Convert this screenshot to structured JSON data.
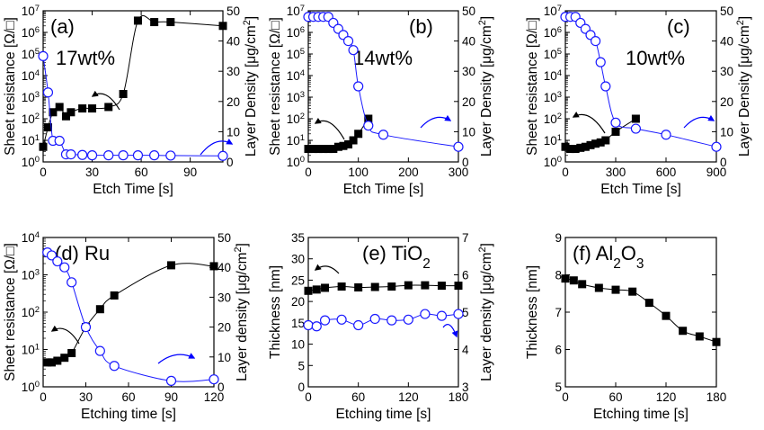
{
  "colors": {
    "left_series": "#000000",
    "right_series": "#1a1aff",
    "axes": "#000000",
    "annotation_arrow_left": "#000000",
    "annotation_arrow_right": "#0000ff"
  },
  "chart_data": [
    {
      "type": "scatter",
      "title": "(a)",
      "subtitle": "17wt%",
      "xlabel": "Etch Time [s]",
      "ylabel": "Sheet resistance [Ω/□]",
      "y2label": "Layer Density [μg/cm²]",
      "xlim": [
        0,
        110
      ],
      "xticks": [
        0,
        30,
        60,
        90
      ],
      "ylim": [
        1,
        10000000
      ],
      "yscale": "log",
      "yticks": [
        1,
        10,
        100,
        1000,
        10000,
        100000,
        1000000,
        10000000
      ],
      "yticklabels": [
        "10⁰",
        "10¹",
        "10²",
        "10³",
        "10⁴",
        "10⁵",
        "10⁶",
        "10⁷"
      ],
      "y2lim": [
        0,
        50
      ],
      "y2ticks": [
        0,
        10,
        20,
        30,
        40,
        50
      ],
      "series": [
        {
          "axis": "left",
          "marker": "filled-square",
          "x": [
            0,
            3,
            6,
            10,
            14,
            17,
            24,
            30,
            40,
            49,
            58,
            68,
            78,
            110
          ],
          "y": [
            5,
            40,
            200,
            350,
            130,
            200,
            300,
            300,
            350,
            1400,
            3500000,
            3000000,
            3000000,
            2000000
          ]
        },
        {
          "axis": "right",
          "marker": "open-circle",
          "x": [
            0,
            3,
            6,
            10,
            14,
            17,
            24,
            30,
            40,
            49,
            58,
            68,
            78,
            110
          ],
          "y": [
            35,
            23,
            7,
            7,
            2.5,
            2.5,
            2.3,
            2.2,
            2.2,
            2.2,
            2.2,
            2.2,
            2.1,
            2
          ]
        }
      ]
    },
    {
      "type": "scatter",
      "title": "(b)",
      "subtitle": "14wt%",
      "xlabel": "Etch Time [s]",
      "ylabel": "Sheet resistance [Ω/□]",
      "y2label": "Layer Density [μg/cm²]",
      "xlim": [
        0,
        300
      ],
      "xticks": [
        0,
        100,
        200,
        300
      ],
      "ylim": [
        1,
        10000000
      ],
      "yscale": "log",
      "yticks": [
        1,
        10,
        100,
        1000,
        10000,
        100000,
        1000000,
        10000000
      ],
      "yticklabels": [
        "10⁰",
        "10¹",
        "10²",
        "10³",
        "10⁴",
        "10⁵",
        "10⁶",
        "10⁷"
      ],
      "y2lim": [
        0,
        50
      ],
      "y2ticks": [
        0,
        10,
        20,
        30,
        40,
        50
      ],
      "series": [
        {
          "axis": "left",
          "marker": "filled-square",
          "x": [
            0,
            10,
            20,
            30,
            40,
            50,
            60,
            70,
            80,
            90,
            100,
            120
          ],
          "y": [
            4,
            4,
            4,
            4,
            4,
            4,
            5,
            5.5,
            6.5,
            10,
            20,
            100
          ]
        },
        {
          "axis": "right",
          "marker": "open-circle",
          "x": [
            0,
            10,
            20,
            30,
            40,
            50,
            60,
            70,
            80,
            90,
            100,
            120,
            150,
            300
          ],
          "y": [
            48,
            48,
            48,
            48,
            48,
            46,
            44,
            42,
            40,
            37,
            25,
            12,
            9,
            5
          ]
        }
      ]
    },
    {
      "type": "scatter",
      "title": "(c)",
      "subtitle": "10wt%",
      "xlabel": "Etch Time [s]",
      "ylabel": "Sheet resistance [Ω/□]",
      "y2label": "Layer Density [μg/cm²]",
      "xlim": [
        0,
        900
      ],
      "xticks": [
        0,
        300,
        600,
        900
      ],
      "ylim": [
        1,
        10000000
      ],
      "yscale": "log",
      "yticks": [
        1,
        10,
        100,
        1000,
        10000,
        100000,
        1000000,
        10000000
      ],
      "yticklabels": [
        "10⁰",
        "10¹",
        "10²",
        "10³",
        "10⁴",
        "10⁵",
        "10⁶",
        "10⁷"
      ],
      "y2lim": [
        0,
        50
      ],
      "y2ticks": [
        0,
        10,
        20,
        30,
        40,
        50
      ],
      "series": [
        {
          "axis": "left",
          "marker": "filled-square",
          "x": [
            0,
            30,
            60,
            90,
            120,
            150,
            180,
            210,
            240,
            300,
            420
          ],
          "y": [
            5,
            4,
            4,
            4.5,
            5,
            6,
            7,
            8,
            10,
            25,
            100
          ]
        },
        {
          "axis": "right",
          "marker": "open-circle",
          "x": [
            0,
            30,
            60,
            90,
            120,
            150,
            180,
            210,
            240,
            300,
            420,
            600,
            900
          ],
          "y": [
            48,
            48,
            48,
            46,
            44,
            42,
            40,
            33,
            25,
            13,
            11,
            9,
            5
          ]
        }
      ]
    },
    {
      "type": "scatter",
      "title": "(d) Ru",
      "xlabel": "Etching time [s]",
      "ylabel": "Sheet resistance [Ω/□]",
      "y2label": "Layer density [μg/cm²]",
      "xlim": [
        0,
        120
      ],
      "xticks": [
        0,
        30,
        60,
        90,
        120
      ],
      "ylim": [
        1,
        10000
      ],
      "yscale": "log",
      "yticks": [
        1,
        10,
        100,
        1000,
        10000
      ],
      "yticklabels": [
        "10⁰",
        "10¹",
        "10²",
        "10³",
        "10⁴"
      ],
      "y2lim": [
        0,
        50
      ],
      "y2ticks": [
        0,
        10,
        20,
        30,
        40,
        50
      ],
      "series": [
        {
          "axis": "left",
          "marker": "filled-square",
          "x": [
            3,
            6,
            10,
            15,
            20,
            30,
            40,
            50,
            90,
            120
          ],
          "y": [
            4.5,
            4.5,
            5,
            6,
            8,
            40,
            120,
            280,
            1800,
            1700
          ]
        },
        {
          "axis": "right",
          "marker": "open-circle",
          "x": [
            3,
            6,
            10,
            15,
            20,
            30,
            40,
            50,
            90,
            120
          ],
          "y": [
            45,
            44,
            42,
            40,
            35,
            20,
            12,
            7,
            2,
            2.5
          ]
        }
      ]
    },
    {
      "type": "scatter",
      "title": "(e) TiO₂",
      "xlabel": "Etching time [s]",
      "ylabel": "Thickness [nm]",
      "y2label": "Layer density [μg/cm²]",
      "xlim": [
        0,
        180
      ],
      "xticks": [
        0,
        60,
        120,
        180
      ],
      "ylim": [
        0,
        35
      ],
      "yticks": [
        0,
        5,
        10,
        15,
        20,
        25,
        30,
        35
      ],
      "y2lim": [
        3,
        7
      ],
      "y2ticks": [
        3,
        4,
        5,
        6,
        7
      ],
      "series": [
        {
          "axis": "left",
          "marker": "filled-square",
          "x": [
            0,
            10,
            20,
            40,
            60,
            80,
            100,
            120,
            140,
            160,
            180
          ],
          "y": [
            22.5,
            22.8,
            23.2,
            23.5,
            23.3,
            23.4,
            23.5,
            23.8,
            23.8,
            23.7,
            23.7
          ]
        },
        {
          "axis": "right",
          "marker": "open-circle",
          "x": [
            0,
            10,
            20,
            40,
            60,
            80,
            100,
            120,
            140,
            160,
            180
          ],
          "y": [
            4.65,
            4.62,
            4.78,
            4.8,
            4.65,
            4.82,
            4.78,
            4.8,
            4.95,
            4.9,
            4.95
          ]
        }
      ]
    },
    {
      "type": "line",
      "title": "(f) Al₂O₃",
      "xlabel": "Etching time [s]",
      "ylabel": "Thickness [nm]",
      "xlim": [
        0,
        180
      ],
      "xticks": [
        0,
        60,
        120,
        180
      ],
      "ylim": [
        5,
        9
      ],
      "yticks": [
        5,
        6,
        7,
        8,
        9
      ],
      "series": [
        {
          "axis": "left",
          "marker": "filled-square",
          "x": [
            0,
            10,
            20,
            40,
            60,
            80,
            100,
            120,
            140,
            160,
            180
          ],
          "y": [
            7.9,
            7.85,
            7.75,
            7.65,
            7.6,
            7.55,
            7.25,
            6.9,
            6.5,
            6.35,
            6.2
          ]
        }
      ]
    }
  ]
}
